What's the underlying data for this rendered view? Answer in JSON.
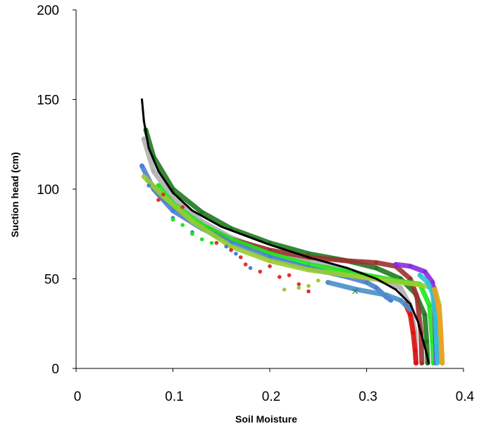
{
  "chart_data": {
    "type": "scatter",
    "title": "",
    "xlabel": "Soil Moisture",
    "ylabel": "Suction head (cm)",
    "xlim": [
      0,
      0.4
    ],
    "ylim": [
      0,
      200
    ],
    "x_ticks": [
      "0",
      "0.1",
      "0.2",
      "0.3",
      "0.4"
    ],
    "y_ticks": [
      "0",
      "50",
      "100",
      "150",
      "200"
    ],
    "grid": false,
    "legend": "none",
    "series": [
      {
        "color": "#1f7a1f",
        "points": [
          [
            0.072,
            133
          ],
          [
            0.08,
            118
          ],
          [
            0.1,
            100
          ],
          [
            0.13,
            87
          ],
          [
            0.16,
            78
          ],
          [
            0.2,
            70
          ],
          [
            0.24,
            64
          ],
          [
            0.28,
            60
          ],
          [
            0.31,
            56
          ],
          [
            0.335,
            50
          ],
          [
            0.35,
            42
          ],
          [
            0.36,
            30
          ],
          [
            0.362,
            15
          ],
          [
            0.363,
            3
          ]
        ]
      },
      {
        "color": "#b0b0b0",
        "points": [
          [
            0.07,
            128
          ],
          [
            0.08,
            110
          ],
          [
            0.1,
            95
          ],
          [
            0.13,
            82
          ],
          [
            0.16,
            73
          ],
          [
            0.2,
            65
          ],
          [
            0.24,
            60
          ],
          [
            0.28,
            55
          ],
          [
            0.31,
            50
          ],
          [
            0.335,
            45
          ],
          [
            0.345,
            35
          ],
          [
            0.35,
            20
          ],
          [
            0.351,
            3
          ]
        ]
      },
      {
        "color": "#a03030",
        "points": [
          [
            0.074,
            105
          ],
          [
            0.09,
            95
          ],
          [
            0.12,
            82
          ],
          [
            0.16,
            72
          ],
          [
            0.2,
            66
          ],
          [
            0.24,
            62
          ],
          [
            0.28,
            60
          ],
          [
            0.31,
            59
          ],
          [
            0.33,
            57
          ],
          [
            0.345,
            50
          ],
          [
            0.352,
            40
          ],
          [
            0.356,
            20
          ],
          [
            0.357,
            3
          ]
        ]
      },
      {
        "color": "#1ee61e",
        "points": [
          [
            0.085,
            102
          ],
          [
            0.1,
            92
          ],
          [
            0.13,
            80
          ],
          [
            0.16,
            72
          ],
          [
            0.2,
            64
          ],
          [
            0.24,
            58
          ],
          [
            0.28,
            54
          ],
          [
            0.31,
            51
          ],
          [
            0.33,
            49
          ],
          [
            0.355,
            47
          ],
          [
            0.365,
            35
          ],
          [
            0.368,
            15
          ],
          [
            0.369,
            3
          ]
        ]
      },
      {
        "color": "#4a7fd4",
        "points": [
          [
            0.068,
            113
          ],
          [
            0.08,
            100
          ],
          [
            0.1,
            88
          ],
          [
            0.13,
            78
          ],
          [
            0.16,
            70
          ],
          [
            0.2,
            62
          ],
          [
            0.24,
            56
          ],
          [
            0.28,
            51
          ],
          [
            0.3,
            48
          ],
          [
            0.31,
            45
          ],
          [
            0.32,
            40
          ],
          [
            0.325,
            38
          ]
        ]
      },
      {
        "color": "#9acd32",
        "points": [
          [
            0.07,
            107
          ],
          [
            0.09,
            96
          ],
          [
            0.12,
            82
          ],
          [
            0.16,
            68
          ],
          [
            0.2,
            60
          ],
          [
            0.24,
            55
          ],
          [
            0.28,
            52
          ],
          [
            0.32,
            49
          ],
          [
            0.35,
            47
          ],
          [
            0.37,
            45
          ],
          [
            0.375,
            35
          ],
          [
            0.377,
            15
          ],
          [
            0.378,
            3
          ]
        ]
      },
      {
        "color": "#8a2be2",
        "points": [
          [
            0.33,
            58
          ],
          [
            0.345,
            57
          ],
          [
            0.36,
            54
          ],
          [
            0.368,
            48
          ],
          [
            0.37,
            40
          ],
          [
            0.371,
            20
          ],
          [
            0.372,
            3
          ]
        ]
      },
      {
        "color": "#2ec4d6",
        "points": [
          [
            0.355,
            52
          ],
          [
            0.363,
            48
          ],
          [
            0.368,
            42
          ],
          [
            0.371,
            30
          ],
          [
            0.372,
            15
          ],
          [
            0.373,
            3
          ]
        ]
      },
      {
        "color": "#f0a020",
        "points": [
          [
            0.37,
            44
          ],
          [
            0.374,
            35
          ],
          [
            0.376,
            25
          ],
          [
            0.377,
            15
          ],
          [
            0.378,
            3
          ]
        ]
      },
      {
        "color": "#e01010",
        "points": [
          [
            0.34,
            36
          ],
          [
            0.345,
            30
          ],
          [
            0.348,
            20
          ],
          [
            0.35,
            10
          ],
          [
            0.351,
            3
          ]
        ]
      },
      {
        "color": "#4a8fc8",
        "points": [
          [
            0.26,
            48
          ],
          [
            0.29,
            44
          ],
          [
            0.32,
            41
          ],
          [
            0.335,
            38
          ],
          [
            0.345,
            33
          ]
        ]
      },
      {
        "color": "#000000",
        "points": [
          [
            0.068,
            150
          ],
          [
            0.07,
            138
          ],
          [
            0.075,
            123
          ],
          [
            0.085,
            110
          ],
          [
            0.1,
            98
          ],
          [
            0.12,
            88
          ],
          [
            0.15,
            79
          ],
          [
            0.2,
            69
          ],
          [
            0.24,
            62
          ],
          [
            0.28,
            56
          ],
          [
            0.31,
            50
          ],
          [
            0.33,
            44
          ],
          [
            0.345,
            36
          ],
          [
            0.353,
            26
          ],
          [
            0.358,
            16
          ],
          [
            0.362,
            8
          ],
          [
            0.364,
            3
          ]
        ]
      }
    ],
    "scatter_markers": [
      {
        "color": "#e03030",
        "points": [
          [
            0.085,
            94
          ],
          [
            0.09,
            97
          ],
          [
            0.11,
            90
          ],
          [
            0.145,
            70
          ],
          [
            0.16,
            66
          ],
          [
            0.17,
            62
          ],
          [
            0.175,
            58
          ],
          [
            0.2,
            57
          ],
          [
            0.22,
            52
          ],
          [
            0.24,
            43
          ],
          [
            0.23,
            47
          ],
          [
            0.21,
            51
          ],
          [
            0.19,
            54
          ]
        ]
      },
      {
        "color": "#4a7fd4",
        "points": [
          [
            0.075,
            102
          ],
          [
            0.1,
            84
          ],
          [
            0.12,
            76
          ],
          [
            0.155,
            68
          ],
          [
            0.165,
            64
          ],
          [
            0.18,
            56
          ]
        ]
      },
      {
        "color": "#1ee61e",
        "points": [
          [
            0.1,
            83
          ],
          [
            0.11,
            80
          ],
          [
            0.12,
            75
          ],
          [
            0.13,
            72
          ],
          [
            0.14,
            70
          ]
        ]
      },
      {
        "color": "#9acd32",
        "points": [
          [
            0.24,
            46
          ],
          [
            0.25,
            49
          ],
          [
            0.23,
            45
          ],
          [
            0.215,
            44
          ]
        ]
      }
    ],
    "x_markers": [
      {
        "color": "#2e8b57",
        "points": [
          [
            0.288,
            43
          ]
        ]
      }
    ]
  }
}
